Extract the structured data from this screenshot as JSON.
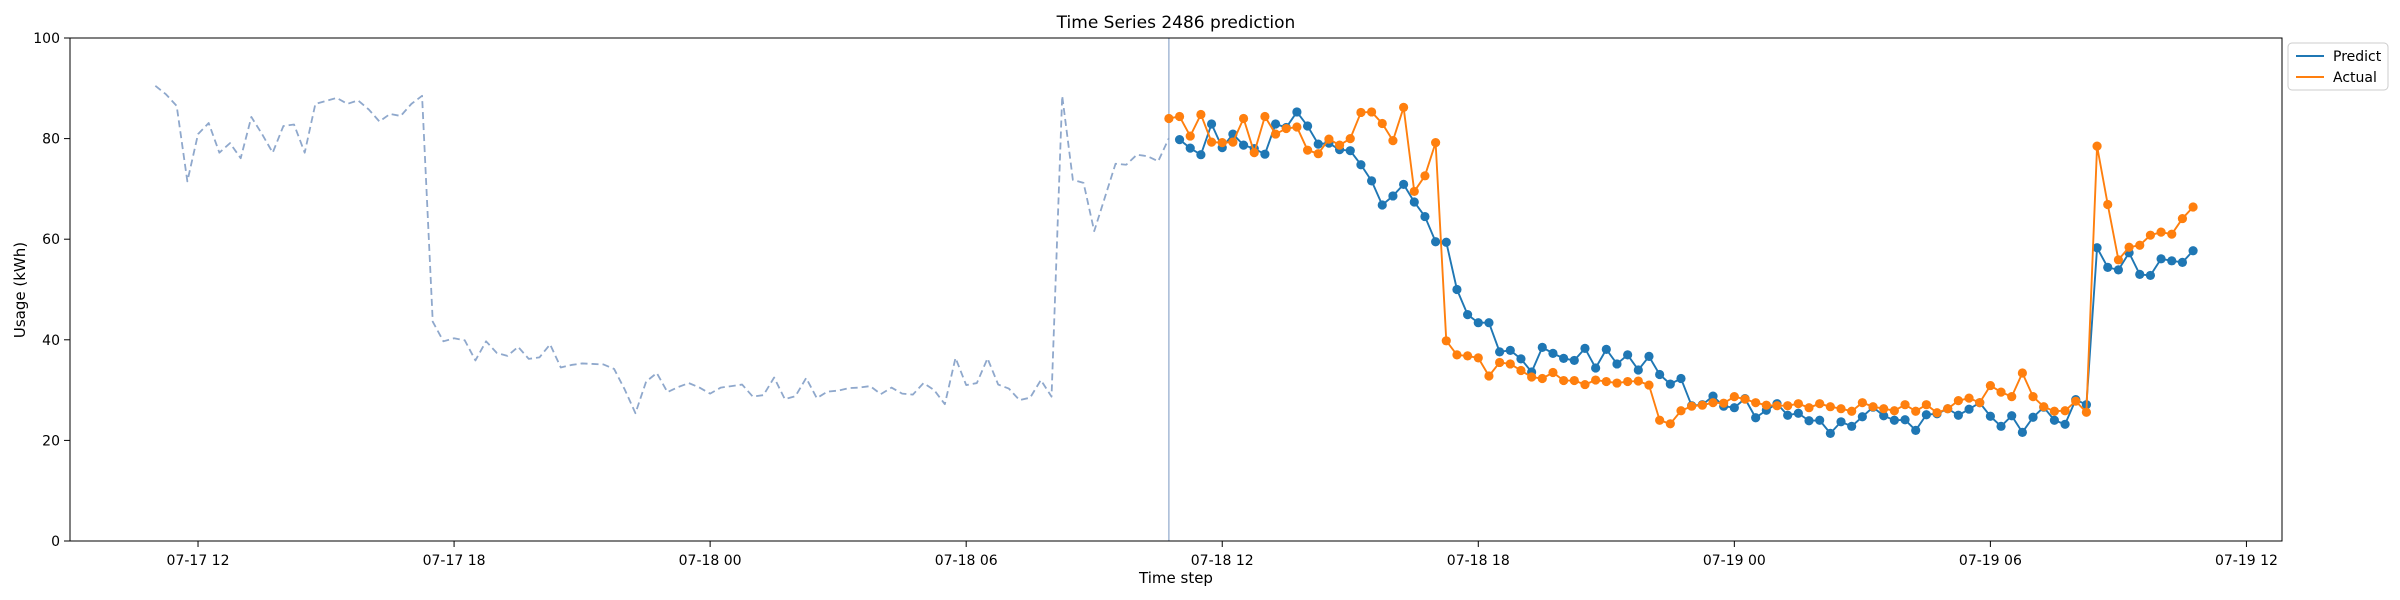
{
  "chart_data": {
    "type": "line",
    "title": "Time Series 2486 prediction",
    "xlabel": "Time step",
    "ylabel": "Usage (kWh)",
    "ylim": [
      0,
      100
    ],
    "y_ticks": [
      0,
      20,
      40,
      60,
      80,
      100
    ],
    "x_range": [
      "2024-07-17T09:00",
      "2024-07-19T12:50"
    ],
    "x_ticks": [
      {
        "t": "2024-07-17T12:00",
        "label": "07-17 12"
      },
      {
        "t": "2024-07-17T18:00",
        "label": "07-17 18"
      },
      {
        "t": "2024-07-18T00:00",
        "label": "07-18 00"
      },
      {
        "t": "2024-07-18T06:00",
        "label": "07-18 06"
      },
      {
        "t": "2024-07-18T12:00",
        "label": "07-18 12"
      },
      {
        "t": "2024-07-18T18:00",
        "label": "07-18 18"
      },
      {
        "t": "2024-07-19T00:00",
        "label": "07-19 00"
      },
      {
        "t": "2024-07-19T06:00",
        "label": "07-19 06"
      },
      {
        "t": "2024-07-19T12:00",
        "label": "07-19 12"
      }
    ],
    "forecast_start": "2024-07-18T10:45",
    "legend": {
      "placement": "top-right"
    },
    "colors": {
      "predict": "#1f77b4",
      "actual": "#ff7f0e",
      "history": "#8fa8cc"
    },
    "series": [
      {
        "name": "",
        "style": "dashed",
        "start": "2024-07-17T11:00",
        "step_minutes": 15,
        "values": [
          90.5,
          88.8,
          86.5,
          71.5,
          80.9,
          83.1,
          77.2,
          79.1,
          76.1,
          84.3,
          80.9,
          77.2,
          82.5,
          82.8,
          77.2,
          86.9,
          87.5,
          88.1,
          86.9,
          87.6,
          85.8,
          83.4,
          84.9,
          84.5,
          86.9,
          88.5,
          43.6,
          39.7,
          40.3,
          39.9,
          35.9,
          39.7,
          37.4,
          36.8,
          38.6,
          36.2,
          36.5,
          39.1,
          34.5,
          35.0,
          35.3,
          35.2,
          35.1,
          34.2,
          30.1,
          25.4,
          31.7,
          33.4,
          29.6,
          30.6,
          31.4,
          30.5,
          29.3,
          30.5,
          30.8,
          31.1,
          28.7,
          29.0,
          32.5,
          28.2,
          28.8,
          32.4,
          28.4,
          29.7,
          29.9,
          30.4,
          30.5,
          30.8,
          29.2,
          30.5,
          29.3,
          29.1,
          31.4,
          30.0,
          27.2,
          36.4,
          31.0,
          31.4,
          36.3,
          31.1,
          30.3,
          28.0,
          28.5,
          32.0,
          28.7,
          88.5,
          71.8,
          71.2,
          61.6,
          68.3,
          75.0,
          74.8,
          76.8,
          76.5,
          75.5,
          80.1
        ]
      },
      {
        "name": "Predict",
        "style": "solid-marker",
        "start": "2024-07-18T11:00",
        "step_minutes": 15,
        "values": [
          79.8,
          78.1,
          76.8,
          82.9,
          78.2,
          80.9,
          78.7,
          78.0,
          76.9,
          82.9,
          82.2,
          85.3,
          82.5,
          78.9,
          79.1,
          77.8,
          77.6,
          74.8,
          71.6,
          66.8,
          68.6,
          70.9,
          67.4,
          64.5,
          59.5,
          59.4,
          50.0,
          45.0,
          43.4,
          43.4,
          37.6,
          37.9,
          36.2,
          33.6,
          38.5,
          37.3,
          36.3,
          35.9,
          38.3,
          34.4,
          38.1,
          35.2,
          37.0,
          34.0,
          36.7,
          33.1,
          31.2,
          32.3,
          26.9,
          27.1,
          28.8,
          26.8,
          26.5,
          28.3,
          24.5,
          26.0,
          27.3,
          25.0,
          25.4,
          23.9,
          24.0,
          21.4,
          23.7,
          22.8,
          24.7,
          26.6,
          24.9,
          24.0,
          24.1,
          22.0,
          25.1,
          25.3,
          26.3,
          25.0,
          26.2,
          27.5,
          24.8,
          22.8,
          24.9,
          21.6,
          24.6,
          26.6,
          24.0,
          23.2,
          28.1,
          27.1,
          58.3,
          54.4,
          53.9,
          57.3,
          53.0,
          52.8,
          56.1,
          55.7,
          55.4,
          57.7
        ]
      },
      {
        "name": "Actual",
        "style": "solid-marker",
        "start": "2024-07-18T10:45",
        "step_minutes": 15,
        "values": [
          84.0,
          84.4,
          80.5,
          84.8,
          79.3,
          79.2,
          79.3,
          84.0,
          77.2,
          84.4,
          80.9,
          82.0,
          82.3,
          77.7,
          77.0,
          79.9,
          78.7,
          80.0,
          85.2,
          85.3,
          83.0,
          79.6,
          86.2,
          69.5,
          72.6,
          79.2,
          39.8,
          37.0,
          36.8,
          36.4,
          32.8,
          35.5,
          35.2,
          33.9,
          32.6,
          32.3,
          33.5,
          31.9,
          31.9,
          31.1,
          32.0,
          31.7,
          31.4,
          31.7,
          31.8,
          31.0,
          24.0,
          23.3,
          25.9,
          26.8,
          27.0,
          27.5,
          27.4,
          28.7,
          28.2,
          27.5,
          27.0,
          26.9,
          26.9,
          27.3,
          26.5,
          27.3,
          26.7,
          26.3,
          25.8,
          27.5,
          26.7,
          26.3,
          25.9,
          27.1,
          25.8,
          27.1,
          25.5,
          26.3,
          27.9,
          28.4,
          27.5,
          30.9,
          29.6,
          28.7,
          33.4,
          28.7,
          26.7,
          25.8,
          25.9,
          27.8,
          25.6,
          78.5,
          66.9,
          55.9,
          58.4,
          58.8,
          60.8,
          61.4,
          61.0,
          64.1,
          66.4
        ]
      }
    ]
  }
}
